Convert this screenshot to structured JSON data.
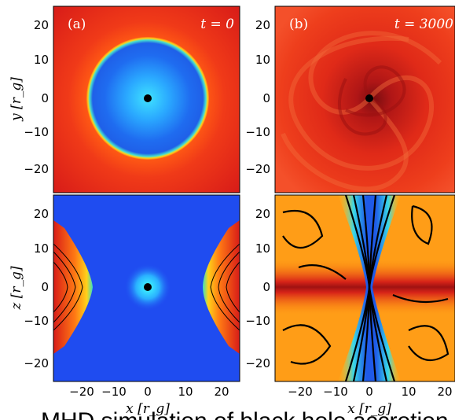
{
  "panels": {
    "a": {
      "label": "(a)",
      "time": "t = 0"
    },
    "b": {
      "label": "(b)",
      "time": "t = 3000"
    }
  },
  "axes": {
    "y_label_top": "y [r_g]",
    "z_label_bottom": "z [r_g]",
    "x_label": "x [r_g]",
    "ticks": [
      "20",
      "10",
      "0",
      "−10",
      "−20"
    ],
    "xticks": [
      "−20",
      "−10",
      "0",
      "10",
      "20"
    ]
  },
  "caption": "MHD simulation of black hole accretion",
  "colors": {
    "disk_red": "#e8321c",
    "torus_blue": "#1f6cf0",
    "cyan_core": "#3fd0ff",
    "yellow_rim": "#ffd21a",
    "field_lines": "#000000"
  }
}
